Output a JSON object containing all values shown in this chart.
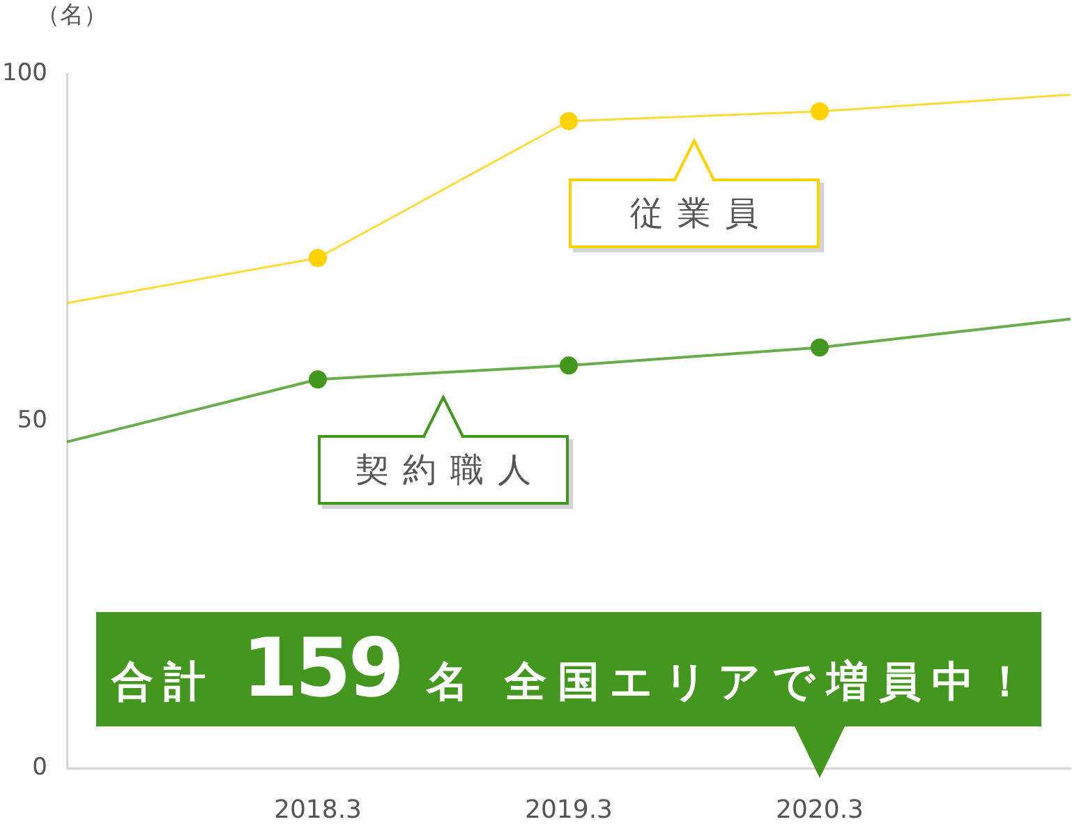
{
  "chart_data": {
    "type": "line",
    "ylabel": "（名）",
    "categories": [
      null,
      "2018.3",
      "2019.3",
      "2020.3",
      null
    ],
    "series": [
      {
        "name": "従業員",
        "color": "#ffd200",
        "values": [
          67,
          73.5,
          93.2,
          94.6,
          97
        ]
      },
      {
        "name": "契約職人",
        "color": "#42971f",
        "values": [
          47,
          56,
          58,
          60.6,
          64.7
        ]
      }
    ],
    "ylim": [
      0,
      100
    ],
    "yticks": [
      0,
      50,
      100
    ],
    "marker": "circle",
    "line_style": "solid",
    "legend": "top",
    "annotations": [
      "合計 159 名 全国エリアで増員中！"
    ]
  }
}
